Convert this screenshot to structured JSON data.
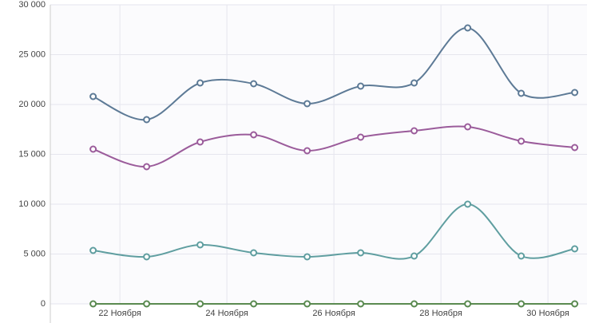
{
  "chart_data": {
    "type": "line",
    "x": [
      21.5,
      22.5,
      23.5,
      24.5,
      25.5,
      26.5,
      27.5,
      28.5,
      29.5,
      30.5
    ],
    "xlim": [
      20.7,
      30.73
    ],
    "xticks": [
      {
        "value": 22,
        "label": "22 Ноября"
      },
      {
        "value": 24,
        "label": "24 Ноября"
      },
      {
        "value": 26,
        "label": "26 Ноября"
      },
      {
        "value": 28,
        "label": "28 Ноября"
      },
      {
        "value": 30,
        "label": "30 Ноября"
      }
    ],
    "ylim": [
      0,
      30000
    ],
    "yticks": [
      0,
      {
        "value": 5000,
        "label": "5 000"
      },
      {
        "value": 10000,
        "label": "10 000"
      },
      {
        "value": 15000,
        "label": "15 000"
      },
      {
        "value": 20000,
        "label": "20 000"
      },
      {
        "value": 25000,
        "label": "25 000"
      },
      {
        "value": 30000,
        "label": "30 000"
      }
    ],
    "grid": true,
    "series": [
      {
        "color": "#5d7a96",
        "values": [
          20800,
          18480,
          22160,
          22080,
          20080,
          21840,
          22160,
          27680,
          21120,
          21200
        ]
      },
      {
        "color": "#9b5c9b",
        "values": [
          15520,
          13760,
          16240,
          16960,
          15360,
          16720,
          17360,
          17760,
          16320,
          15680
        ]
      },
      {
        "color": "#5f9ea0",
        "values": [
          5360,
          4720,
          5920,
          5120,
          4720,
          5120,
          4800,
          10000,
          4800,
          5520
        ]
      },
      {
        "color": "#5a8a50",
        "values": [
          0,
          0,
          0,
          0,
          0,
          0,
          0,
          0,
          0,
          0
        ]
      }
    ]
  }
}
